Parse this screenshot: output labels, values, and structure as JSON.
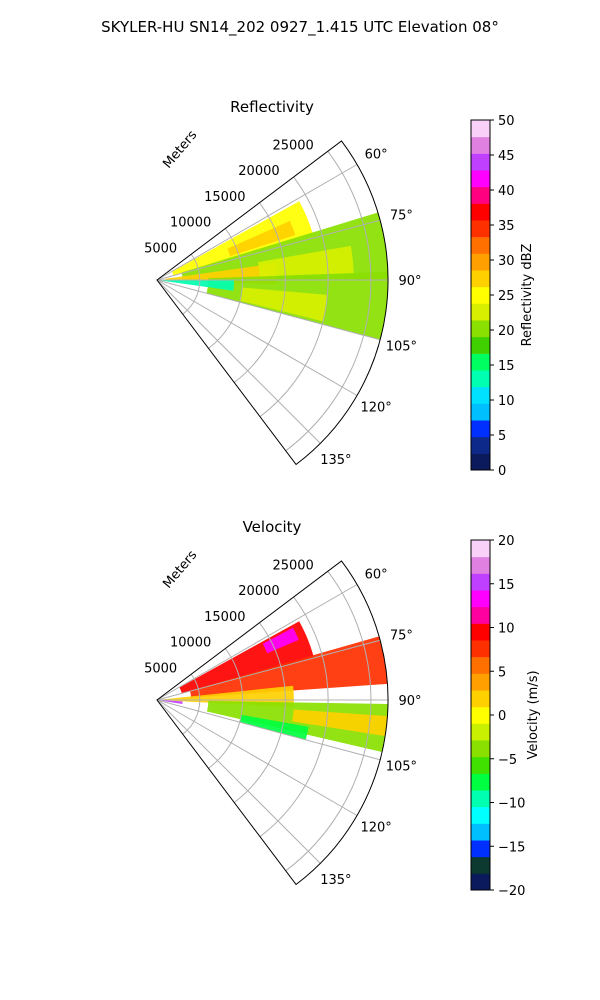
{
  "figure_title": "SKYLER-HU  SN14_202  0927_1.415 UTC Elevation 08°",
  "chart_data": [
    {
      "type": "polar-sector-heatmap",
      "title": "Reflectivity",
      "radial_axis_label": "Meters",
      "radial_range": [
        0,
        27000
      ],
      "radial_ticks": [
        5000,
        10000,
        15000,
        20000,
        25000
      ],
      "radial_tick_labels": [
        "5000",
        "10000",
        "15000",
        "20000",
        "25000"
      ],
      "azimuth_range_deg": [
        53,
        143
      ],
      "azimuth_ticks_deg": [
        60,
        75,
        90,
        105,
        120,
        135
      ],
      "azimuth_tick_labels": [
        "60°",
        "75°",
        "90°",
        "105°",
        "120°",
        "135°"
      ],
      "grid": true,
      "colorbar": {
        "label": "Reflectivity dBZ",
        "range": [
          0,
          50
        ],
        "ticks": [
          "0",
          "5",
          "10",
          "15",
          "20",
          "25",
          "30",
          "35",
          "40",
          "45",
          "50"
        ],
        "colors": [
          "#0b1a5c",
          "#0d2a8a",
          "#0030ff",
          "#00bfff",
          "#00e0ff",
          "#00ffb0",
          "#00ff60",
          "#40d000",
          "#8ae000",
          "#d8f000",
          "#ffff00",
          "#ffd000",
          "#ffa000",
          "#ff7000",
          "#ff3000",
          "#ff0000",
          "#ff0080",
          "#ff00ff",
          "#c040ff",
          "#e080e0",
          "#f8d0f8"
        ]
      },
      "echo_regions": [
        {
          "az_deg": [
            61,
            74
          ],
          "range_m": [
            2000,
            19000
          ],
          "value": 24
        },
        {
          "az_deg": [
            73,
            90
          ],
          "range_m": [
            3000,
            27000
          ],
          "value": 20
        },
        {
          "az_deg": [
            82,
            92
          ],
          "range_m": [
            1000,
            14000
          ],
          "value": 27
        },
        {
          "az_deg": [
            88,
            105
          ],
          "range_m": [
            6000,
            27000
          ],
          "value": 21
        },
        {
          "az_deg": [
            90,
            98
          ],
          "range_m": [
            0,
            9000
          ],
          "value": 13
        },
        {
          "az_deg": [
            66,
            72
          ],
          "range_m": [
            9000,
            17000
          ],
          "value": 28
        },
        {
          "az_deg": [
            95,
            104
          ],
          "range_m": [
            10000,
            20000
          ],
          "value": 22
        },
        {
          "az_deg": [
            80,
            88
          ],
          "range_m": [
            12000,
            23000
          ],
          "value": 23
        }
      ]
    },
    {
      "type": "polar-sector-heatmap",
      "title": "Velocity",
      "radial_axis_label": "Meters",
      "radial_range": [
        0,
        27000
      ],
      "radial_ticks": [
        5000,
        10000,
        15000,
        20000,
        25000
      ],
      "radial_tick_labels": [
        "5000",
        "10000",
        "15000",
        "20000",
        "25000"
      ],
      "azimuth_range_deg": [
        53,
        143
      ],
      "azimuth_ticks_deg": [
        60,
        75,
        90,
        105,
        120,
        135
      ],
      "azimuth_tick_labels": [
        "60°",
        "75°",
        "90°",
        "105°",
        "120°",
        "135°"
      ],
      "grid": true,
      "colorbar": {
        "label": "Velocity (m/s)",
        "range": [
          -20,
          20
        ],
        "ticks": [
          "−20",
          "−15",
          "−10",
          "−5",
          "0",
          "5",
          "10",
          "15",
          "20"
        ],
        "colors": [
          "#0b1a5c",
          "#0d3a30",
          "#0030ff",
          "#00bfff",
          "#00ffff",
          "#00ffb0",
          "#00ff40",
          "#40e000",
          "#8ae000",
          "#c8f000",
          "#ffff00",
          "#ffd000",
          "#ffa000",
          "#ff7000",
          "#ff3000",
          "#ff0000",
          "#ff00a0",
          "#ff00ff",
          "#c040ff",
          "#e080e0",
          "#f8d0f8"
        ]
      },
      "echo_regions": [
        {
          "az_deg": [
            61,
            75
          ],
          "range_m": [
            3000,
            19000
          ],
          "value": 10
        },
        {
          "az_deg": [
            74,
            86
          ],
          "range_m": [
            4000,
            27000
          ],
          "value": 8
        },
        {
          "az_deg": [
            84,
            93
          ],
          "range_m": [
            0,
            16000
          ],
          "value": 1
        },
        {
          "az_deg": [
            91,
            103
          ],
          "range_m": [
            6000,
            27000
          ],
          "value": -4
        },
        {
          "az_deg": [
            94,
            99
          ],
          "range_m": [
            16000,
            27000
          ],
          "value": 2
        },
        {
          "az_deg": [
            100,
            105
          ],
          "range_m": [
            10000,
            18000
          ],
          "value": -8
        },
        {
          "az_deg": [
            93,
            99
          ],
          "range_m": [
            0,
            3000
          ],
          "value": 15
        },
        {
          "az_deg": [
            62,
            67
          ],
          "range_m": [
            14000,
            18000
          ],
          "value": 13
        }
      ]
    }
  ]
}
